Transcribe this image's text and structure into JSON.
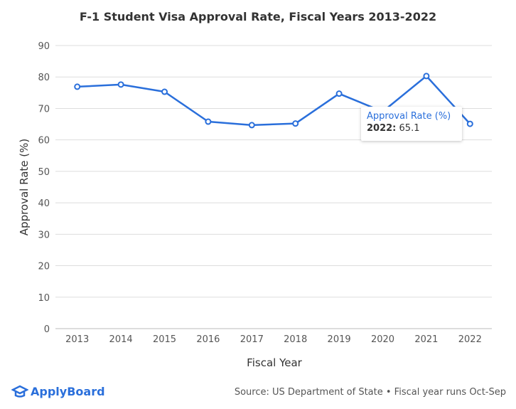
{
  "chart_data": {
    "type": "line",
    "title": "F-1 Student Visa Approval Rate, Fiscal Years 2013-2022",
    "xlabel": "Fiscal Year",
    "ylabel": "Approval Rate (%)",
    "ylim": [
      0,
      90
    ],
    "yticks": [
      0,
      10,
      20,
      30,
      40,
      50,
      60,
      70,
      80,
      90
    ],
    "categories": [
      "2013",
      "2014",
      "2015",
      "2016",
      "2017",
      "2018",
      "2019",
      "2020",
      "2021",
      "2022"
    ],
    "series": [
      {
        "name": "Approval Rate (%)",
        "values": [
          76.9,
          77.6,
          75.3,
          65.8,
          64.7,
          65.2,
          74.7,
          69.0,
          80.3,
          65.1
        ],
        "color": "#2a6fdb"
      }
    ],
    "grid": true,
    "legend": "none"
  },
  "tooltip": {
    "title": "Approval Rate (%)",
    "label": "2022:",
    "value": "65.1"
  },
  "footer": {
    "logo": "ApplyBoard",
    "source": "Source: US Department of State • Fiscal year runs Oct-Sep"
  }
}
